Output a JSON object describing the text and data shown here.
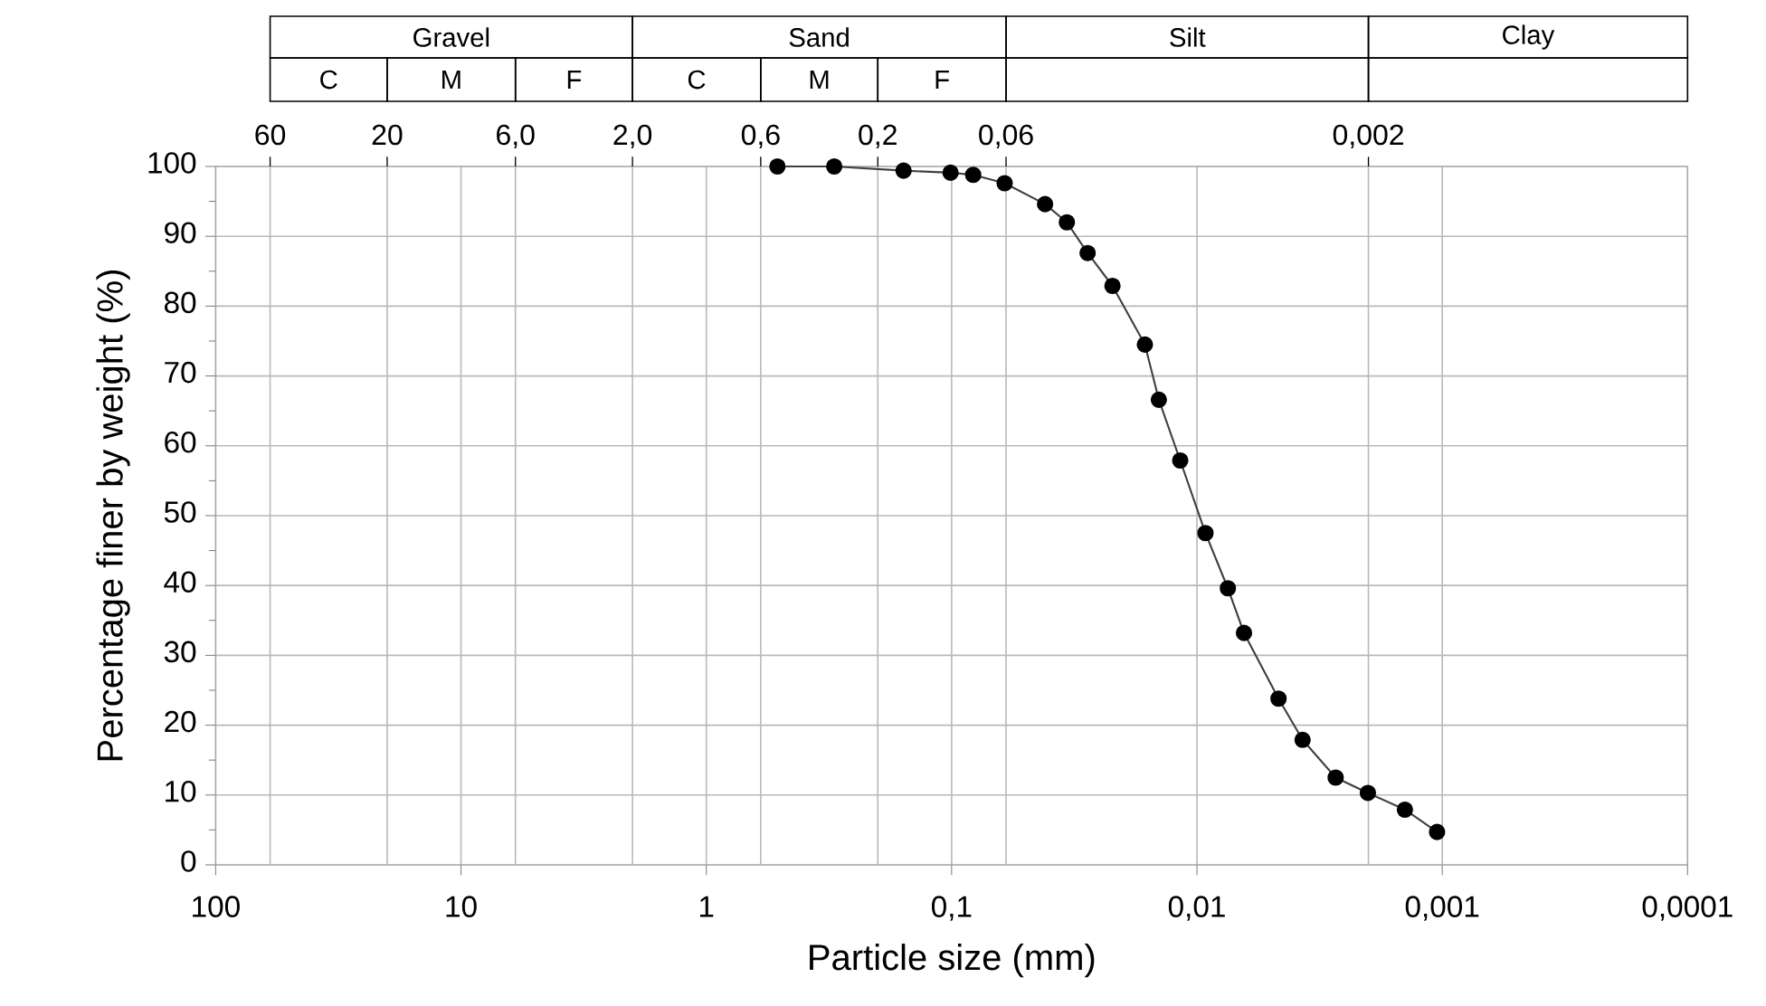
{
  "chart_data": {
    "type": "line",
    "xlabel": "Particle size (mm)",
    "ylabel": "Percentage finer by weight (%)",
    "x": [
      0.513,
      0.301,
      0.157,
      0.101,
      0.0817,
      0.0608,
      0.0416,
      0.0339,
      0.0279,
      0.0221,
      0.0163,
      0.0143,
      0.0117,
      0.00923,
      0.00748,
      0.00643,
      0.00465,
      0.00371,
      0.00272,
      0.00201,
      0.00142,
      0.00105
    ],
    "series": [
      {
        "color": "#000000",
        "values": [
          100,
          100,
          99.4,
          99.1,
          98.8,
          97.6,
          94.6,
          92.0,
          87.6,
          82.9,
          74.5,
          66.6,
          57.9,
          47.5,
          39.6,
          33.2,
          23.8,
          17.9,
          12.5,
          10.3,
          7.9,
          4.7
        ]
      }
    ],
    "xlim": [
      100,
      0.0001
    ],
    "ylim": [
      0,
      100
    ],
    "xticks": [
      100,
      10,
      1,
      {
        "value": 0.1,
        "label": "0,1"
      },
      {
        "value": 0.01,
        "label": "0,01"
      },
      {
        "value": 0.001,
        "label": "0,001"
      },
      {
        "value": 0.0001,
        "label": "0,0001"
      }
    ],
    "yticks": [
      0,
      10,
      20,
      30,
      40,
      50,
      60,
      70,
      80,
      90,
      100
    ],
    "log": "x",
    "grid": true,
    "marker": "circle",
    "line_style": "solid",
    "ref_lines": [
      {
        "axis": "x",
        "value": 60,
        "label": "60"
      },
      {
        "axis": "x",
        "value": 20,
        "label": "20"
      },
      {
        "axis": "x",
        "value": 6,
        "label": "6,0"
      },
      {
        "axis": "x",
        "value": 2,
        "label": "2,0"
      },
      {
        "axis": "x",
        "value": 0.6,
        "label": "0,6"
      },
      {
        "axis": "x",
        "value": 0.2,
        "label": "0,2"
      },
      {
        "axis": "x",
        "value": 0.06,
        "label": "0,06"
      },
      {
        "axis": "x",
        "value": 0.002,
        "label": "0,002"
      }
    ],
    "annotations": [
      "Gravel",
      "Sand",
      "Silt",
      "Clay",
      "C",
      "M",
      "F",
      "C",
      "M",
      "F"
    ]
  }
}
